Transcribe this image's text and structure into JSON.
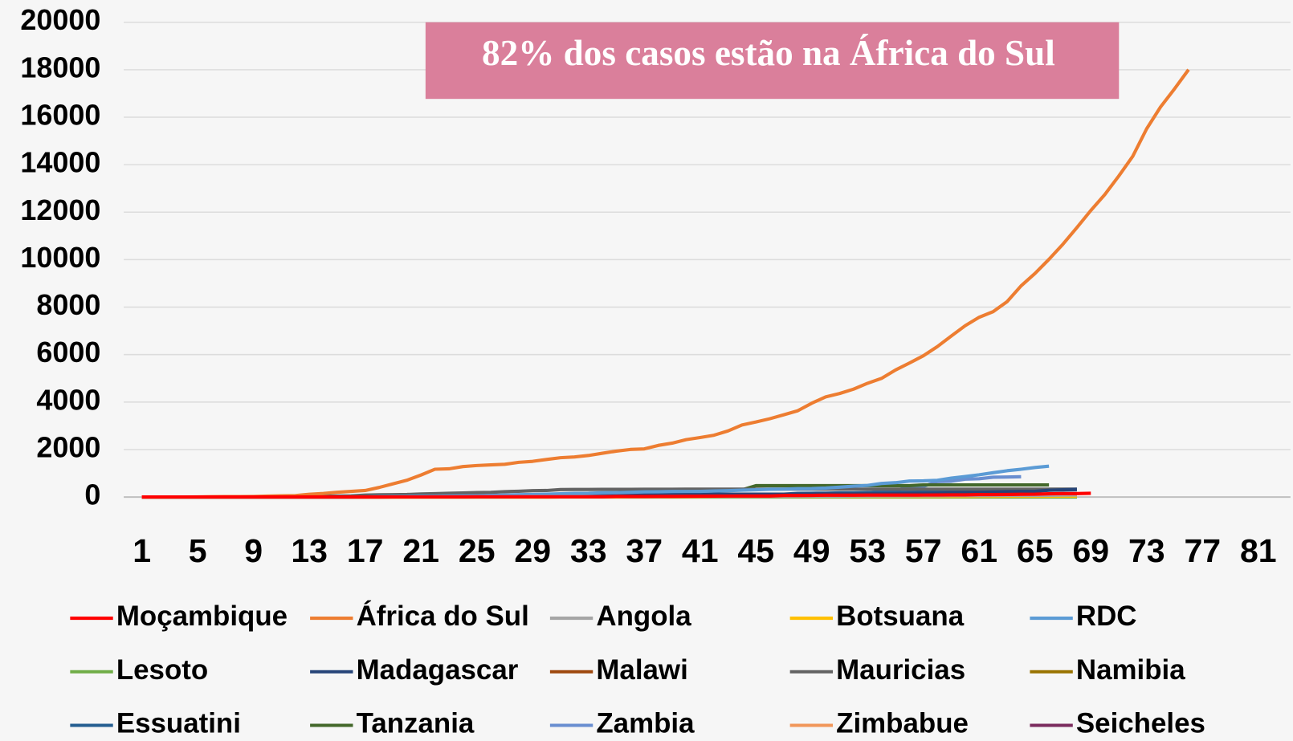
{
  "chart_data": {
    "type": "line",
    "annotation": "82% dos casos estão na África do Sul",
    "x": [
      1,
      2,
      3,
      4,
      5,
      6,
      7,
      8,
      9,
      10,
      11,
      12,
      13,
      14,
      15,
      16,
      17,
      18,
      19,
      20,
      21,
      22,
      23,
      24,
      25,
      26,
      27,
      28,
      29,
      30,
      31,
      32,
      33,
      34,
      35,
      36,
      37,
      38,
      39,
      40,
      41,
      42,
      43,
      44,
      45,
      46,
      47,
      48,
      49,
      50,
      51,
      52,
      53,
      54,
      55,
      56,
      57,
      58,
      59,
      60,
      61,
      62,
      63,
      64,
      65,
      66,
      67,
      68,
      69,
      70,
      71,
      72,
      73,
      74,
      75,
      76
    ],
    "xlim": [
      1,
      83
    ],
    "xticks": [
      1,
      5,
      9,
      13,
      17,
      21,
      25,
      29,
      33,
      37,
      41,
      45,
      49,
      53,
      57,
      61,
      65,
      69,
      73,
      77,
      81
    ],
    "ylim": [
      0,
      20000
    ],
    "yticks": [
      0,
      2000,
      4000,
      6000,
      8000,
      10000,
      12000,
      14000,
      16000,
      18000,
      20000
    ],
    "grid": true,
    "series": [
      {
        "name": "Moçambique",
        "color": "#ff0000",
        "values": [
          0,
          0,
          0,
          0,
          0,
          0,
          0,
          0,
          0,
          0,
          0,
          0,
          0,
          0,
          0,
          0,
          1,
          1,
          2,
          3,
          5,
          7,
          8,
          8,
          10,
          10,
          10,
          10,
          10,
          10,
          10,
          10,
          10,
          10,
          20,
          21,
          21,
          28,
          29,
          31,
          35,
          39,
          41,
          46,
          46,
          46,
          65,
          65,
          70,
          76,
          76,
          76,
          79,
          80,
          81,
          81,
          82,
          87,
          91,
          91,
          103,
          104,
          107,
          115,
          119,
          137,
          145,
          146,
          156,
          null,
          null,
          null,
          null,
          null,
          null,
          null
        ]
      },
      {
        "name": "África do Sul",
        "color": "#ed7d31",
        "values": [
          1,
          1,
          2,
          3,
          7,
          13,
          16,
          17,
          24,
          38,
          51,
          62,
          116,
          150,
          202,
          240,
          274,
          402,
          554,
          709,
          927,
          1170,
          1187,
          1280,
          1326,
          1353,
          1380,
          1462,
          1505,
          1585,
          1655,
          1686,
          1749,
          1845,
          1934,
          2003,
          2028,
          2173,
          2272,
          2415,
          2506,
          2605,
          2783,
          3034,
          3158,
          3300,
          3465,
          3635,
          3953,
          4220,
          4361,
          4546,
          4793,
          4996,
          5350,
          5647,
          5951,
          6336,
          6783,
          7220,
          7572,
          7808,
          8232,
          8895,
          9420,
          10015,
          10652,
          11350,
          12074,
          12739,
          13524,
          14355,
          15515,
          16433,
          17200,
          18003
        ]
      },
      {
        "name": "Angola",
        "color": "#a5a5a5",
        "values": [
          0,
          0,
          0,
          0,
          0,
          0,
          0,
          0,
          0,
          0,
          0,
          0,
          0,
          0,
          0,
          0,
          0,
          0,
          2,
          3,
          4,
          5,
          7,
          7,
          8,
          8,
          10,
          14,
          17,
          19,
          19,
          19,
          19,
          19,
          19,
          19,
          19,
          19,
          24,
          24,
          25,
          25,
          25,
          25,
          26,
          27,
          27,
          30,
          35,
          36,
          36,
          43,
          45,
          48,
          48,
          50,
          52,
          52,
          58,
          58,
          60,
          61,
          69,
          70,
          71,
          74,
          81,
          84,
          null,
          null,
          null,
          null,
          null,
          null,
          null,
          null
        ]
      },
      {
        "name": "Botsuana",
        "color": "#ffc000",
        "values": [
          0,
          0,
          0,
          0,
          0,
          0,
          0,
          0,
          0,
          0,
          0,
          0,
          0,
          0,
          0,
          0,
          0,
          0,
          0,
          0,
          0,
          0,
          0,
          0,
          0,
          0,
          0,
          0,
          0,
          0,
          3,
          4,
          4,
          6,
          6,
          13,
          13,
          13,
          13,
          15,
          15,
          20,
          20,
          22,
          22,
          23,
          23,
          23,
          23,
          23,
          23,
          23,
          23,
          23,
          24,
          24,
          25,
          25,
          29,
          29,
          30,
          30,
          35,
          35,
          35,
          35,
          38,
          38,
          null,
          null,
          null,
          null,
          null,
          null,
          null,
          null
        ]
      },
      {
        "name": "RDC",
        "color": "#5b9bd5",
        "values": [
          0,
          0,
          0,
          0,
          0,
          0,
          0,
          0,
          0,
          0,
          0,
          0,
          0,
          0,
          1,
          2,
          3,
          14,
          18,
          23,
          30,
          36,
          45,
          48,
          51,
          65,
          81,
          98,
          109,
          123,
          134,
          154,
          161,
          180,
          183,
          200,
          215,
          223,
          234,
          235,
          241,
          254,
          267,
          287,
          307,
          327,
          332,
          350,
          359,
          377,
          416,
          459,
          491,
          572,
          604,
          674,
          682,
          705,
          797,
          863,
          937,
          1024,
          1106,
          1169,
          1242,
          1298,
          null,
          null,
          null,
          null,
          null,
          null,
          null,
          null,
          null,
          null
        ]
      },
      {
        "name": "Lesoto",
        "color": "#70ad47",
        "values": [
          0,
          0,
          0,
          0,
          0,
          0,
          0,
          0,
          0,
          0,
          0,
          0,
          0,
          0,
          0,
          0,
          0,
          0,
          0,
          0,
          0,
          0,
          0,
          0,
          0,
          0,
          0,
          0,
          0,
          0,
          0,
          0,
          0,
          0,
          0,
          0,
          0,
          0,
          0,
          0,
          0,
          0,
          0,
          0,
          0,
          0,
          0,
          0,
          0,
          0,
          0,
          0,
          0,
          0,
          0,
          0,
          0,
          0,
          0,
          0,
          0,
          0,
          0,
          0,
          0,
          0,
          1,
          1,
          null,
          null,
          null,
          null,
          null,
          null,
          null,
          null
        ]
      },
      {
        "name": "Madagascar",
        "color": "#264478",
        "values": [
          0,
          0,
          0,
          0,
          0,
          0,
          0,
          0,
          0,
          0,
          0,
          0,
          0,
          0,
          0,
          0,
          3,
          12,
          12,
          19,
          26,
          26,
          39,
          43,
          44,
          57,
          57,
          59,
          70,
          70,
          72,
          72,
          82,
          88,
          93,
          93,
          102,
          106,
          108,
          110,
          111,
          117,
          121,
          121,
          121,
          121,
          121,
          122,
          124,
          128,
          128,
          128,
          131,
          132,
          135,
          149,
          151,
          158,
          176,
          186,
          193,
          212,
          225,
          232,
          238,
          283,
          304,
          326,
          null,
          null,
          null,
          null,
          null,
          null,
          null,
          null
        ]
      },
      {
        "name": "Malawi",
        "color": "#9e480e",
        "values": [
          0,
          0,
          0,
          0,
          0,
          0,
          0,
          0,
          0,
          0,
          0,
          0,
          0,
          0,
          0,
          0,
          0,
          0,
          0,
          0,
          0,
          0,
          0,
          0,
          0,
          0,
          0,
          0,
          0,
          0,
          3,
          4,
          5,
          8,
          8,
          9,
          12,
          13,
          16,
          16,
          16,
          17,
          17,
          23,
          23,
          33,
          33,
          34,
          36,
          36,
          37,
          38,
          39,
          43,
          56,
          56,
          57,
          57,
          63,
          64,
          65,
          70,
          70,
          72,
          79,
          82,
          82,
          83,
          null,
          null,
          null,
          null,
          null,
          null,
          null,
          null
        ]
      },
      {
        "name": "Mauricias",
        "color": "#636363",
        "values": [
          0,
          0,
          0,
          0,
          0,
          0,
          0,
          0,
          3,
          3,
          12,
          14,
          28,
          36,
          42,
          48,
          81,
          94,
          102,
          107,
          128,
          143,
          161,
          169,
          186,
          196,
          227,
          244,
          268,
          273,
          314,
          318,
          319,
          324,
          324,
          324,
          325,
          328,
          328,
          329,
          331,
          331,
          331,
          332,
          332,
          332,
          332,
          332,
          332,
          332,
          332,
          332,
          332,
          332,
          332,
          332,
          332,
          332,
          332,
          332,
          332,
          332,
          332,
          332,
          332,
          332,
          332,
          332,
          null,
          null,
          null,
          null,
          null,
          null,
          null,
          null
        ]
      },
      {
        "name": "Namibia",
        "color": "#997300",
        "values": [
          0,
          0,
          0,
          0,
          0,
          0,
          0,
          0,
          0,
          0,
          2,
          2,
          2,
          2,
          3,
          3,
          3,
          3,
          3,
          4,
          7,
          8,
          8,
          11,
          11,
          11,
          14,
          14,
          16,
          16,
          16,
          16,
          16,
          16,
          16,
          16,
          16,
          16,
          16,
          16,
          16,
          16,
          16,
          16,
          16,
          16,
          16,
          16,
          16,
          16,
          16,
          16,
          16,
          16,
          16,
          16,
          16,
          16,
          16,
          16,
          16,
          16,
          16,
          16,
          16,
          16,
          16,
          16,
          null,
          null,
          null,
          null,
          null,
          null,
          null,
          null
        ]
      },
      {
        "name": "Essuatini",
        "color": "#255e91",
        "values": [
          0,
          0,
          0,
          0,
          0,
          0,
          0,
          0,
          0,
          0,
          0,
          0,
          1,
          1,
          1,
          4,
          4,
          4,
          9,
          9,
          9,
          9,
          9,
          9,
          9,
          10,
          10,
          12,
          12,
          12,
          14,
          15,
          15,
          16,
          22,
          24,
          31,
          36,
          56,
          65,
          71,
          71,
          91,
          100,
          106,
          112,
          119,
          153,
          159,
          163,
          172,
          175,
          187,
          190,
          202,
          203,
          208,
          217,
          225,
          250,
          256,
          261,
          272,
          279,
          283,
          294,
          300,
          305,
          null,
          null,
          null,
          null,
          null,
          null,
          null,
          null
        ]
      },
      {
        "name": "Tanzania",
        "color": "#43682b",
        "values": [
          0,
          0,
          0,
          0,
          0,
          0,
          0,
          0,
          0,
          0,
          0,
          0,
          0,
          0,
          1,
          1,
          1,
          1,
          6,
          6,
          12,
          12,
          13,
          13,
          14,
          19,
          19,
          20,
          20,
          22,
          24,
          25,
          32,
          32,
          53,
          88,
          94,
          147,
          170,
          254,
          254,
          284,
          299,
          299,
          480,
          480,
          480,
          480,
          480,
          480,
          480,
          480,
          480,
          480,
          480,
          480,
          509,
          509,
          509,
          509,
          509,
          509,
          509,
          509,
          509,
          509,
          null,
          null,
          null,
          null,
          null,
          null,
          null,
          null,
          null,
          null
        ]
      },
      {
        "name": "Zambia",
        "color": "#698ed0",
        "values": [
          0,
          0,
          0,
          0,
          0,
          0,
          0,
          0,
          0,
          0,
          0,
          0,
          0,
          0,
          0,
          0,
          2,
          3,
          3,
          12,
          16,
          22,
          28,
          29,
          35,
          36,
          39,
          39,
          39,
          40,
          40,
          43,
          45,
          48,
          52,
          57,
          61,
          65,
          70,
          74,
          76,
          84,
          88,
          89,
          95,
          106,
          109,
          119,
          124,
          137,
          138,
          146,
          167,
          252,
          267,
          441,
          446,
          654,
          668,
          753,
          772,
          832,
          845,
          854,
          null,
          null,
          null,
          null,
          null,
          null,
          null,
          null,
          null,
          null,
          null,
          null
        ]
      },
      {
        "name": "Zimbabue",
        "color": "#f1975a",
        "values": [
          0,
          0,
          0,
          0,
          0,
          0,
          0,
          0,
          0,
          0,
          0,
          0,
          0,
          0,
          0,
          0,
          0,
          0,
          1,
          2,
          3,
          3,
          5,
          7,
          7,
          8,
          8,
          8,
          9,
          9,
          10,
          11,
          11,
          11,
          14,
          17,
          17,
          23,
          23,
          25,
          25,
          28,
          29,
          31,
          32,
          32,
          34,
          34,
          34,
          34,
          35,
          36,
          37,
          37,
          40,
          40,
          42,
          44,
          44,
          46,
          46,
          48,
          48,
          51,
          56,
          56,
          56,
          56,
          null,
          null,
          null,
          null,
          null,
          null,
          null,
          null
        ]
      },
      {
        "name": "Seicheles",
        "color": "#7b2c5e",
        "values": [
          0,
          0,
          0,
          0,
          0,
          0,
          0,
          0,
          0,
          0,
          0,
          0,
          2,
          3,
          4,
          6,
          7,
          7,
          7,
          8,
          10,
          10,
          10,
          10,
          11,
          11,
          11,
          11,
          11,
          11,
          11,
          11,
          11,
          11,
          11,
          11,
          11,
          11,
          11,
          11,
          11,
          11,
          11,
          11,
          11,
          11,
          11,
          11,
          11,
          11,
          11,
          11,
          11,
          11,
          11,
          11,
          11,
          11,
          11,
          11,
          11,
          11,
          11,
          11,
          11,
          11,
          11,
          11,
          null,
          null,
          null,
          null,
          null,
          null,
          null,
          null
        ]
      }
    ]
  }
}
